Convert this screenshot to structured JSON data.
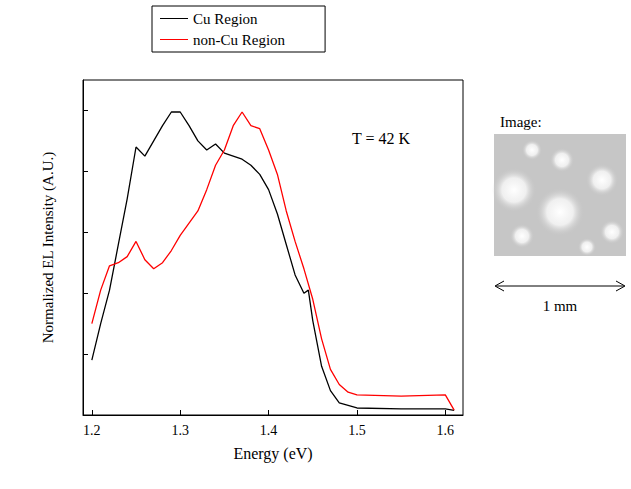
{
  "chart_data": {
    "type": "line",
    "x_label": "Energy (eV)",
    "y_label": "Normalized EL Intensity (A.U.)",
    "annotations": [
      "T = 42 K"
    ],
    "xlim": [
      1.19,
      1.62
    ],
    "xticks": [
      1.2,
      1.3,
      1.4,
      1.5,
      1.6
    ],
    "ylim": [
      0,
      1.1
    ],
    "yticks": [
      0,
      0.2,
      0.4,
      0.6,
      0.8,
      1.0
    ],
    "tick_labels": "x",
    "grid": false,
    "legend": "top",
    "marker": "none",
    "line_style": "solid",
    "series": [
      {
        "name": "Cu Region",
        "color": "#000000",
        "x": [
          1.2,
          1.21,
          1.22,
          1.23,
          1.24,
          1.25,
          1.26,
          1.27,
          1.28,
          1.29,
          1.3,
          1.31,
          1.32,
          1.33,
          1.34,
          1.35,
          1.36,
          1.37,
          1.38,
          1.39,
          1.4,
          1.41,
          1.42,
          1.43,
          1.44,
          1.445,
          1.45,
          1.46,
          1.47,
          1.48,
          1.5,
          1.55,
          1.6,
          1.61
        ],
        "values": [
          0.18,
          0.3,
          0.41,
          0.56,
          0.71,
          0.88,
          0.85,
          0.9,
          0.95,
          0.995,
          0.995,
          0.95,
          0.9,
          0.87,
          0.89,
          0.86,
          0.85,
          0.84,
          0.82,
          0.79,
          0.74,
          0.66,
          0.56,
          0.46,
          0.4,
          0.41,
          0.31,
          0.16,
          0.08,
          0.04,
          0.023,
          0.02,
          0.02,
          0.015
        ]
      },
      {
        "name": "non-Cu Region",
        "color": "#ff0000",
        "x": [
          1.2,
          1.21,
          1.22,
          1.23,
          1.24,
          1.25,
          1.26,
          1.27,
          1.28,
          1.29,
          1.3,
          1.31,
          1.32,
          1.33,
          1.34,
          1.35,
          1.36,
          1.37,
          1.38,
          1.39,
          1.4,
          1.41,
          1.42,
          1.43,
          1.44,
          1.45,
          1.46,
          1.47,
          1.48,
          1.49,
          1.5,
          1.55,
          1.6,
          1.61
        ],
        "values": [
          0.3,
          0.41,
          0.49,
          0.5,
          0.52,
          0.57,
          0.51,
          0.48,
          0.5,
          0.54,
          0.59,
          0.63,
          0.67,
          0.74,
          0.82,
          0.87,
          0.95,
          0.995,
          0.95,
          0.94,
          0.87,
          0.79,
          0.67,
          0.57,
          0.48,
          0.38,
          0.25,
          0.15,
          0.1,
          0.075,
          0.066,
          0.062,
          0.066,
          0.016
        ]
      }
    ]
  },
  "image_panel": {
    "title": "Image:",
    "scale_label": "1 mm"
  }
}
